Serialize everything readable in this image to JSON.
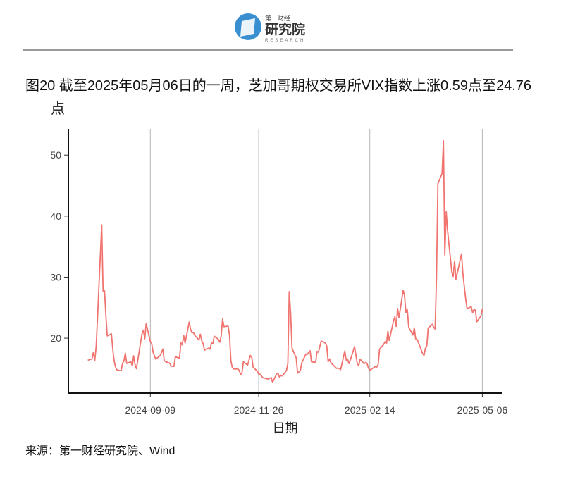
{
  "logo": {
    "small": "第一财经",
    "name": "研究院",
    "en": "RESEARCH"
  },
  "source": "来源：第一财经研究院、Wind",
  "chart_data": {
    "type": "line",
    "title": "图20  截至2025年05月06日的一周，芝加哥期权交易所VIX指数上涨0.59点至24.76点",
    "xlabel": "日期",
    "xlim": [
      "2024-07-12",
      "2025-05-20"
    ],
    "xticks": [
      "2024-09-09",
      "2024-11-26",
      "2025-02-14",
      "2025-05-06"
    ],
    "ylim": [
      11,
      54.3
    ],
    "yticks": [
      20,
      30,
      40,
      50
    ],
    "grid": "x",
    "x": [
      "2024-07-26",
      "2024-07-29",
      "2024-07-30",
      "2024-07-31",
      "2024-08-01",
      "2024-08-02",
      "2024-08-05",
      "2024-08-06",
      "2024-08-07",
      "2024-08-08",
      "2024-08-09",
      "2024-08-12",
      "2024-08-13",
      "2024-08-14",
      "2024-08-15",
      "2024-08-16",
      "2024-08-19",
      "2024-08-20",
      "2024-08-21",
      "2024-08-22",
      "2024-08-23",
      "2024-08-26",
      "2024-08-27",
      "2024-08-28",
      "2024-08-29",
      "2024-08-30",
      "2024-09-03",
      "2024-09-04",
      "2024-09-05",
      "2024-09-06",
      "2024-09-09",
      "2024-09-10",
      "2024-09-11",
      "2024-09-12",
      "2024-09-13",
      "2024-09-16",
      "2024-09-17",
      "2024-09-18",
      "2024-09-19",
      "2024-09-20",
      "2024-09-23",
      "2024-09-24",
      "2024-09-25",
      "2024-09-26",
      "2024-09-27",
      "2024-09-30",
      "2024-10-01",
      "2024-10-02",
      "2024-10-03",
      "2024-10-04",
      "2024-10-07",
      "2024-10-08",
      "2024-10-09",
      "2024-10-10",
      "2024-10-11",
      "2024-10-14",
      "2024-10-15",
      "2024-10-16",
      "2024-10-17",
      "2024-10-18",
      "2024-10-21",
      "2024-10-22",
      "2024-10-23",
      "2024-10-24",
      "2024-10-25",
      "2024-10-28",
      "2024-10-29",
      "2024-10-30",
      "2024-10-31",
      "2024-11-01",
      "2024-11-04",
      "2024-11-05",
      "2024-11-06",
      "2024-11-07",
      "2024-11-08",
      "2024-11-11",
      "2024-11-12",
      "2024-11-13",
      "2024-11-14",
      "2024-11-15",
      "2024-11-18",
      "2024-11-19",
      "2024-11-20",
      "2024-11-21",
      "2024-11-22",
      "2024-11-25",
      "2024-11-26",
      "2024-11-27",
      "2024-11-29",
      "2024-12-02",
      "2024-12-03",
      "2024-12-04",
      "2024-12-05",
      "2024-12-06",
      "2024-12-09",
      "2024-12-10",
      "2024-12-11",
      "2024-12-12",
      "2024-12-13",
      "2024-12-16",
      "2024-12-17",
      "2024-12-18",
      "2024-12-19",
      "2024-12-20",
      "2024-12-23",
      "2024-12-24",
      "2024-12-26",
      "2024-12-27",
      "2024-12-30",
      "2024-12-31",
      "2025-01-02",
      "2025-01-03",
      "2025-01-06",
      "2025-01-07",
      "2025-01-08",
      "2025-01-10",
      "2025-01-13",
      "2025-01-14",
      "2025-01-15",
      "2025-01-16",
      "2025-01-17",
      "2025-01-21",
      "2025-01-22",
      "2025-01-23",
      "2025-01-24",
      "2025-01-27",
      "2025-01-28",
      "2025-01-29",
      "2025-01-30",
      "2025-01-31",
      "2025-02-03",
      "2025-02-04",
      "2025-02-05",
      "2025-02-06",
      "2025-02-07",
      "2025-02-10",
      "2025-02-11",
      "2025-02-12",
      "2025-02-13",
      "2025-02-14",
      "2025-02-18",
      "2025-02-19",
      "2025-02-20",
      "2025-02-21",
      "2025-02-24",
      "2025-02-25",
      "2025-02-26",
      "2025-02-27",
      "2025-02-28",
      "2025-03-03",
      "2025-03-04",
      "2025-03-05",
      "2025-03-06",
      "2025-03-07",
      "2025-03-10",
      "2025-03-11",
      "2025-03-12",
      "2025-03-13",
      "2025-03-14",
      "2025-03-17",
      "2025-03-18",
      "2025-03-19",
      "2025-03-20",
      "2025-03-21",
      "2025-03-24",
      "2025-03-25",
      "2025-03-26",
      "2025-03-27",
      "2025-03-28",
      "2025-03-31",
      "2025-04-01",
      "2025-04-02",
      "2025-04-03",
      "2025-04-04",
      "2025-04-07",
      "2025-04-08",
      "2025-04-09",
      "2025-04-10",
      "2025-04-11",
      "2025-04-14",
      "2025-04-15",
      "2025-04-16",
      "2025-04-17",
      "2025-04-21",
      "2025-04-22",
      "2025-04-23",
      "2025-04-24",
      "2025-04-25",
      "2025-04-28",
      "2025-04-29",
      "2025-04-30",
      "2025-05-01",
      "2025-05-02",
      "2025-05-05",
      "2025-05-06"
    ],
    "series": [
      {
        "color": "#f07470",
        "values": [
          16.39,
          16.6,
          17.69,
          16.36,
          18.59,
          23.39,
          38.57,
          27.71,
          27.85,
          23.79,
          20.37,
          20.71,
          18.12,
          16.19,
          15.23,
          14.8,
          14.65,
          15.88,
          16.27,
          17.55,
          15.86,
          16.15,
          15.43,
          17.11,
          15.65,
          15.0,
          20.72,
          21.32,
          19.9,
          22.38,
          19.45,
          19.08,
          17.69,
          17.07,
          16.56,
          17.14,
          17.61,
          18.23,
          16.33,
          16.15,
          15.89,
          15.39,
          15.41,
          15.37,
          16.96,
          16.73,
          19.26,
          18.9,
          20.49,
          19.21,
          22.64,
          21.42,
          20.86,
          20.93,
          20.46,
          19.7,
          20.64,
          19.58,
          19.11,
          18.03,
          18.37,
          18.2,
          19.24,
          19.08,
          20.33,
          19.8,
          19.34,
          20.35,
          23.16,
          21.88,
          21.98,
          20.49,
          16.27,
          15.2,
          14.94,
          14.97,
          14.71,
          14.02,
          14.31,
          16.14,
          15.58,
          16.35,
          17.16,
          16.87,
          15.24,
          14.6,
          14.1,
          14.1,
          13.51,
          13.34,
          13.3,
          13.45,
          13.54,
          12.77,
          14.18,
          14.18,
          13.58,
          13.92,
          13.81,
          14.69,
          15.87,
          27.62,
          24.09,
          18.36,
          16.78,
          14.27,
          14.73,
          15.95,
          17.4,
          17.35,
          17.93,
          16.13,
          16.04,
          17.82,
          17.7,
          19.54,
          19.19,
          18.71,
          16.12,
          16.6,
          15.97,
          15.06,
          15.1,
          15.02,
          14.85,
          17.9,
          16.41,
          16.56,
          15.84,
          16.43,
          18.62,
          17.21,
          15.77,
          15.5,
          16.54,
          15.81,
          16.02,
          15.89,
          15.1,
          14.77,
          15.35,
          15.27,
          15.66,
          18.21,
          18.98,
          19.43,
          19.1,
          21.13,
          19.63,
          22.78,
          23.51,
          21.93,
          24.87,
          23.37,
          27.86,
          26.92,
          24.23,
          24.66,
          21.77,
          20.51,
          21.7,
          19.9,
          19.8,
          19.28,
          17.48,
          17.15,
          18.33,
          18.69,
          21.65,
          22.28,
          21.77,
          21.51,
          30.02,
          45.31,
          46.98,
          52.33,
          33.62,
          40.72,
          37.56,
          30.89,
          30.12,
          32.64,
          29.65,
          33.82,
          30.57,
          28.45,
          26.47,
          24.84,
          25.15,
          24.17,
          24.7,
          24.6,
          22.68,
          23.64,
          24.76
        ]
      }
    ]
  }
}
